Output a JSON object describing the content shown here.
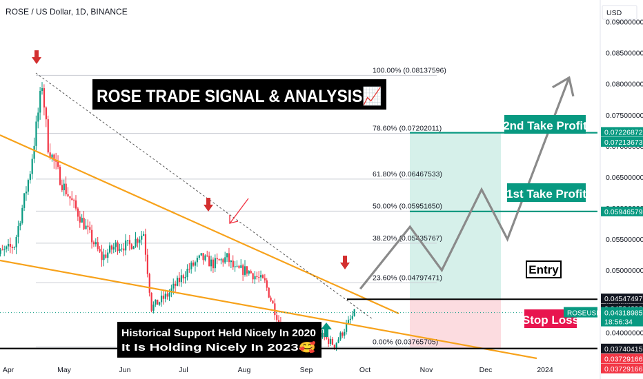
{
  "header": {
    "symbol_title": "ROSE / US Dollar, 1D, BINANCE"
  },
  "currency": "USD",
  "chart_data": {
    "type": "candlestick",
    "title": "ROSE TRADE SIGNAL & ANALYSIS📈",
    "x_labels": [
      "Apr",
      "May",
      "Jun",
      "Jul",
      "Aug",
      "Sep",
      "Oct",
      "Nov",
      "Dec",
      "2024"
    ],
    "y_ticks": [
      "0.09000000",
      "0.08500000",
      "0.08000000",
      "0.07500000",
      "0.07000000",
      "0.06500000",
      "0.06000000",
      "0.05500000",
      "0.05000000",
      "0.04500000",
      "0.04000000"
    ],
    "y_tick_values": [
      0.09,
      0.085,
      0.08,
      0.075,
      0.07,
      0.065,
      0.06,
      0.055,
      0.05,
      0.045,
      0.04
    ],
    "ylim": [
      0.0325,
      0.0935
    ],
    "price_path": [
      [
        "2023-03-24",
        0.052
      ],
      [
        "2023-04-04",
        0.054
      ],
      [
        "2023-04-12",
        0.066
      ],
      [
        "2023-04-18",
        0.08
      ],
      [
        "2023-04-21",
        0.07
      ],
      [
        "2023-04-28",
        0.064
      ],
      [
        "2023-05-08",
        0.058
      ],
      [
        "2023-05-18",
        0.052
      ],
      [
        "2023-05-25",
        0.054
      ],
      [
        "2023-06-01",
        0.054
      ],
      [
        "2023-06-08",
        0.056
      ],
      [
        "2023-06-12",
        0.044
      ],
      [
        "2023-06-20",
        0.046
      ],
      [
        "2023-06-30",
        0.05
      ],
      [
        "2023-07-07",
        0.052
      ],
      [
        "2023-07-13",
        0.051
      ],
      [
        "2023-07-20",
        0.052
      ],
      [
        "2023-07-24",
        0.05
      ],
      [
        "2023-07-30",
        0.05
      ],
      [
        "2023-08-08",
        0.048
      ],
      [
        "2023-08-17",
        0.04
      ],
      [
        "2023-08-25",
        0.0395
      ],
      [
        "2023-09-03",
        0.04
      ],
      [
        "2023-09-12",
        0.038
      ],
      [
        "2023-09-17",
        0.0405
      ],
      [
        "2023-09-22",
        0.043
      ]
    ],
    "fibonacci": [
      {
        "label": "100.00% (0.08137596)",
        "value": 0.08137596
      },
      {
        "label": "78.60% (0.07202011)",
        "value": 0.07202011
      },
      {
        "label": "61.80% (0.06467533)",
        "value": 0.06467533
      },
      {
        "label": "50.00% (0.05951650)",
        "value": 0.0595165
      },
      {
        "label": "38.20% (0.05435767)",
        "value": 0.05435767
      },
      {
        "label": "23.60% (0.04797471)",
        "value": 0.04797471
      },
      {
        "label": "0.00% (0.03765705)",
        "value": 0.03765705
      }
    ],
    "levels": {
      "take_profit_2": {
        "label": "2nd Take Profit",
        "value": 0.07213673
      },
      "take_profit_1": {
        "label": "1st Take Profit",
        "value": 0.05946579
      },
      "entry": {
        "label": "Entry",
        "value": 0.04534298
      },
      "stop_loss": {
        "label": "Stop Loss",
        "value": 0.03740415
      }
    },
    "price_labels": [
      {
        "text": "0.07226872",
        "value": 0.07226872,
        "color": "#089981"
      },
      {
        "text": "0.07213673",
        "value": 0.07213673,
        "color": "#089981"
      },
      {
        "text": "0.05946579",
        "value": 0.05946579,
        "color": "#089981"
      },
      {
        "text": "0.04547497",
        "value": 0.04547497,
        "color": "#131722"
      },
      {
        "text": "0.04534298",
        "value": 0.04534298,
        "color": "#131722"
      },
      {
        "text": "0.03740415",
        "value": 0.03740415,
        "color": "#131722"
      },
      {
        "text": "0.03729166",
        "value": 0.03729166,
        "color": "#f23645"
      },
      {
        "text": "0.03729166",
        "value": 0.03729166,
        "color": "#f23645"
      }
    ],
    "current_price": {
      "symbol": "ROSEUSD",
      "price": "0.04318985",
      "value": 0.04318985,
      "countdown": "18:56:34"
    },
    "annotation_lines": [
      "Historical Support Held Nicely In 2020",
      "It Is Holding Nicely In 2023🥰"
    ],
    "projection_path": [
      [
        "2023-09-25",
        0.047
      ],
      [
        "2023-10-20",
        0.057
      ],
      [
        "2023-11-05",
        0.05
      ],
      [
        "2023-11-25",
        0.063
      ],
      [
        "2023-12-08",
        0.055
      ],
      [
        "2024-01-08",
        0.081
      ]
    ],
    "colors": {
      "up": "#089981",
      "down": "#f23645",
      "trendline": "#f7a21b",
      "tp_zone": "#d6f0ea",
      "sl_zone": "#fcdce0",
      "projection": "#8a8a8a"
    }
  }
}
